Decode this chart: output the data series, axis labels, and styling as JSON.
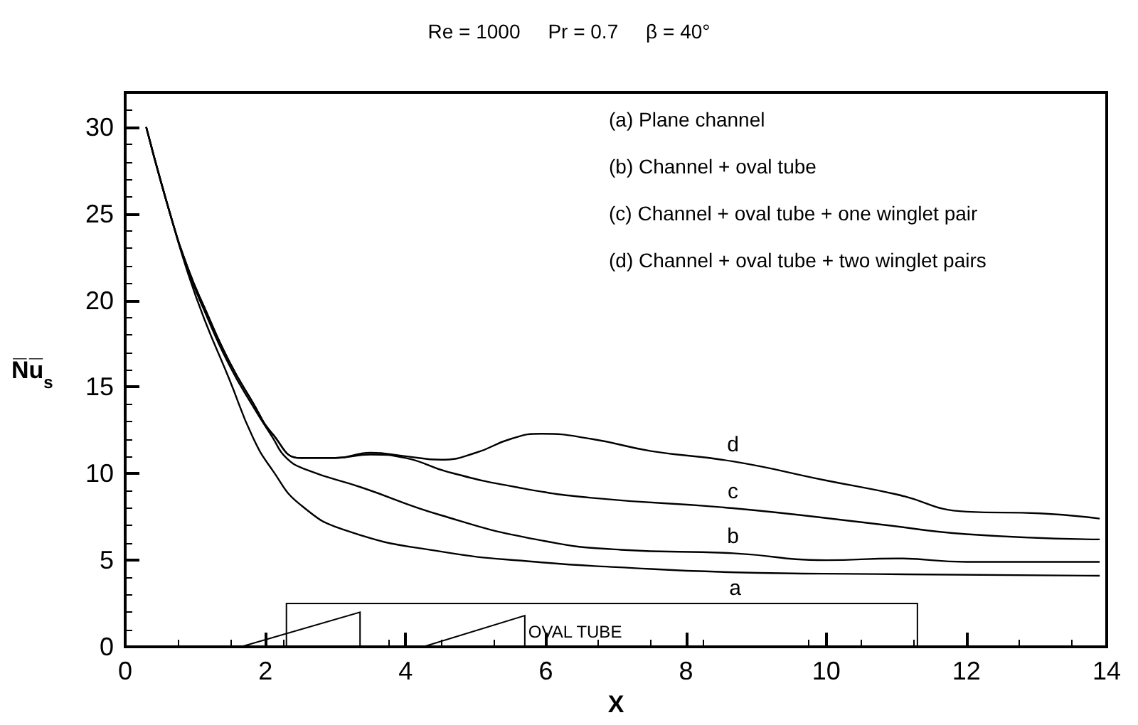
{
  "chart_data": {
    "type": "line",
    "title": "Re = 1000     Pr = 0.7     β = 40°",
    "xlabel": "X",
    "ylabel": "N̅u̅$_{s}$",
    "xlim": [
      0,
      14
    ],
    "xticks": [
      0,
      2,
      4,
      6,
      8,
      10,
      12,
      14
    ],
    "ylim": [
      0,
      32
    ],
    "yticks": [
      0,
      5,
      10,
      15,
      20,
      25,
      30
    ],
    "grid": false,
    "marker": "none",
    "line_style": "solid",
    "series": [
      {
        "name": "a",
        "color": "#000000",
        "x": [
          0.3,
          0.64,
          0.9,
          1.14,
          1.48,
          1.82,
          2.1,
          2.5,
          3.16,
          4.5,
          5.86,
          7.0,
          8.7,
          10.7,
          13.9
        ],
        "values": [
          30,
          25,
          21.5,
          18.8,
          15.5,
          12.1,
          10.2,
          8.2,
          6.7,
          5.5,
          4.9,
          4.6,
          4.3,
          4.2,
          4.1
        ]
      },
      {
        "name": "b",
        "color": "#000000",
        "x": [
          0.3,
          0.64,
          0.9,
          1.14,
          1.48,
          1.82,
          2.1,
          2.3,
          2.6,
          3.37,
          4.5,
          5.86,
          7.07,
          8.67,
          10.0,
          11.0,
          12.0,
          13.9
        ],
        "values": [
          30,
          25,
          21.7,
          19.3,
          16.3,
          13.9,
          12.1,
          10.9,
          10.2,
          9.2,
          7.6,
          6.2,
          5.6,
          5.4,
          5.0,
          5.1,
          4.9,
          4.9
        ]
      },
      {
        "name": "c",
        "color": "#000000",
        "x": [
          0.3,
          0.64,
          0.9,
          1.14,
          1.48,
          1.82,
          2.1,
          2.5,
          3.0,
          3.5,
          4.0,
          4.6,
          5.6,
          6.65,
          8.67,
          10.7,
          12.0,
          13.9
        ],
        "values": [
          30,
          25,
          21.8,
          19.5,
          16.5,
          14.1,
          12.3,
          10.9,
          10.9,
          11.1,
          10.9,
          10.1,
          9.2,
          8.6,
          8.0,
          7.1,
          6.5,
          6.2
        ]
      },
      {
        "name": "d",
        "color": "#000000",
        "x": [
          0.3,
          0.64,
          0.9,
          1.14,
          1.48,
          1.82,
          2.1,
          2.5,
          3.0,
          3.5,
          4.0,
          4.5,
          5.0,
          5.5,
          5.93,
          6.65,
          7.5,
          8.67,
          10.0,
          11.0,
          12.0,
          13.05,
          13.9
        ],
        "values": [
          30,
          25,
          21.8,
          19.5,
          16.5,
          14.1,
          12.3,
          10.9,
          10.9,
          11.2,
          11.0,
          10.8,
          11.2,
          12.0,
          12.3,
          12.0,
          11.3,
          10.7,
          9.6,
          8.8,
          7.8,
          7.7,
          7.4
        ]
      }
    ],
    "annotations": [
      "(a) Plane channel",
      "(b) Channel + oval tube",
      "(c) Channel + oval tube + one winglet pair",
      "(d) Channel + oval tube + two winglet pairs",
      "OVAL TUBE"
    ]
  }
}
